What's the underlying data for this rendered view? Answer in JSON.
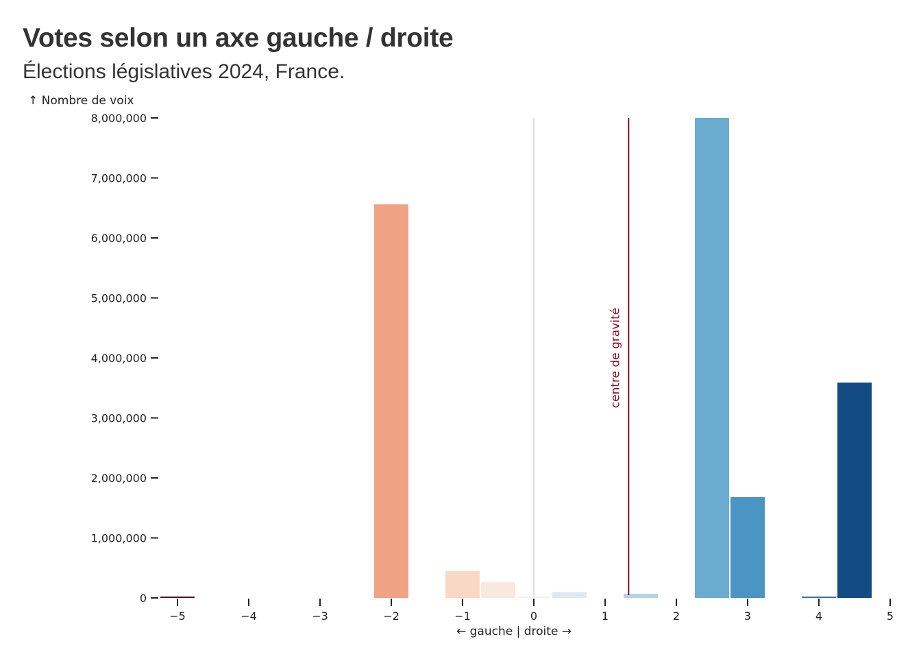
{
  "header": {
    "title": "Votes selon un axe gauche / droite",
    "subtitle": "Élections législatives 2024, France."
  },
  "chart_data": {
    "type": "bar",
    "title": "Votes selon un axe gauche / droite",
    "subtitle": "Élections législatives 2024, France.",
    "xlabel": "← gauche | droite →",
    "ylabel": "↑ Nombre de voix",
    "xlim": [
      -5.25,
      5
    ],
    "ylim": [
      0,
      8000000
    ],
    "grid": false,
    "bin_width": 0.5,
    "x_ticks": [
      "−5",
      "−4",
      "−3",
      "−2",
      "−1",
      "0",
      "1",
      "2",
      "3",
      "4",
      "5"
    ],
    "y_ticks": [
      "0",
      "1,000,000",
      "2,000,000",
      "3,000,000",
      "4,000,000",
      "5,000,000",
      "6,000,000",
      "7,000,000",
      "8,000,000"
    ],
    "bars": [
      {
        "x": -5.0,
        "value": 10000,
        "color": "#67001f"
      },
      {
        "x": -2.0,
        "value": 6560000,
        "color": "#efa284"
      },
      {
        "x": -1.0,
        "value": 446000,
        "color": "#f9d8c5"
      },
      {
        "x": -0.5,
        "value": 263000,
        "color": "#f8e8de"
      },
      {
        "x": 0.0,
        "value": 20000,
        "color": "#f2f2f2"
      },
      {
        "x": 0.5,
        "value": 100000,
        "color": "#deeaf1"
      },
      {
        "x": 1.5,
        "value": 70000,
        "color": "#b3d4e6"
      },
      {
        "x": 2.5,
        "value": 8000000,
        "color": "#6aaccf",
        "clipped": true
      },
      {
        "x": 3.0,
        "value": 1680000,
        "color": "#4a95c4"
      },
      {
        "x": 4.0,
        "value": 20000,
        "color": "#3a70b3"
      },
      {
        "x": 4.5,
        "value": 3590000,
        "color": "#134b85"
      }
    ],
    "annotations": [
      {
        "type": "vline",
        "x": 0,
        "color": "#d3d3d3",
        "label": ""
      },
      {
        "type": "vline",
        "x": 1.33,
        "color": "#8b0a1a",
        "label": "centre de gravité"
      }
    ]
  }
}
